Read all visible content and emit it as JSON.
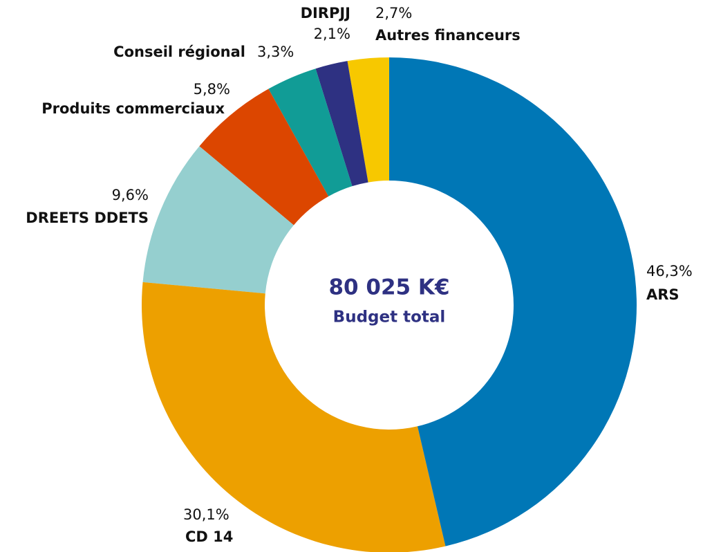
{
  "chart_data": {
    "type": "donut",
    "categories": [
      "ARS",
      "CD 14",
      "DREETS DDETS",
      "Produits commerciaux",
      "Conseil régional",
      "DIRPJJ",
      "Autres financeurs"
    ],
    "values": [
      46.3,
      30.1,
      9.6,
      5.8,
      3.3,
      2.1,
      2.7
    ],
    "value_labels": [
      "46,3%",
      "30,1%",
      "9,6%",
      "5,8%",
      "3,3%",
      "2,1%",
      "2,7%"
    ],
    "colors": [
      "#0077b6",
      "#eda000",
      "#95cfcf",
      "#dc4600",
      "#119c96",
      "#2e3182",
      "#f7c800"
    ],
    "center_value": "80 025 K€",
    "center_label": "Budget total"
  }
}
